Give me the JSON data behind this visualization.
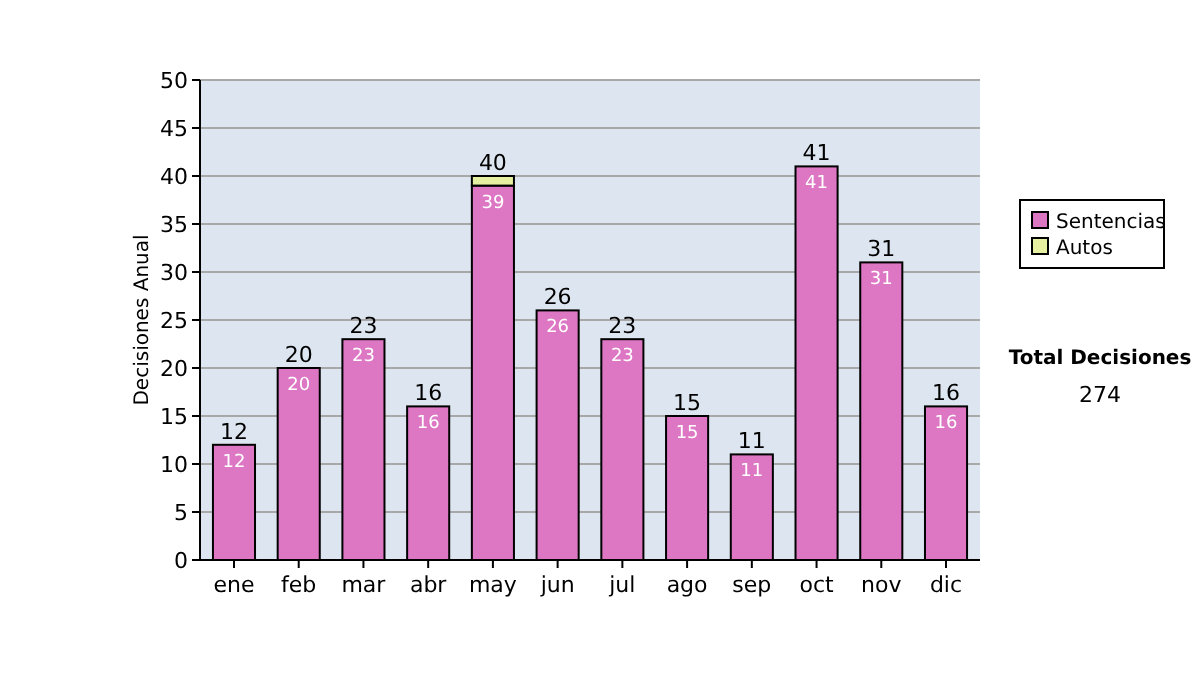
{
  "chart_data": {
    "type": "bar",
    "stacked": true,
    "ylabel": "Decisiones Anual",
    "categories": [
      "ene",
      "feb",
      "mar",
      "abr",
      "may",
      "jun",
      "jul",
      "ago",
      "sep",
      "oct",
      "nov",
      "dic"
    ],
    "series": [
      {
        "name": "Sentencias",
        "color": "#dd77c4",
        "values": [
          12,
          20,
          23,
          16,
          39,
          26,
          23,
          15,
          11,
          41,
          31,
          16
        ],
        "value_labels": [
          "12",
          "20",
          "23",
          "16",
          "39",
          "26",
          "23",
          "15",
          "11",
          "41",
          "31",
          "16"
        ]
      },
      {
        "name": "Autos",
        "color": "#e6f0a0",
        "values": [
          null,
          null,
          null,
          null,
          1,
          null,
          null,
          null,
          null,
          null,
          null,
          null
        ]
      }
    ],
    "totals": [
      "12",
      "20",
      "23",
      "16",
      "40",
      "26",
      "23",
      "15",
      "11",
      "41",
      "31",
      "16"
    ],
    "ylim": [
      0,
      50
    ],
    "yticks": [
      0,
      5,
      10,
      15,
      20,
      25,
      30,
      35,
      40,
      45,
      50
    ],
    "grid": "y",
    "legend": "right",
    "annotations": [
      "Total Decisiones",
      "274"
    ]
  }
}
